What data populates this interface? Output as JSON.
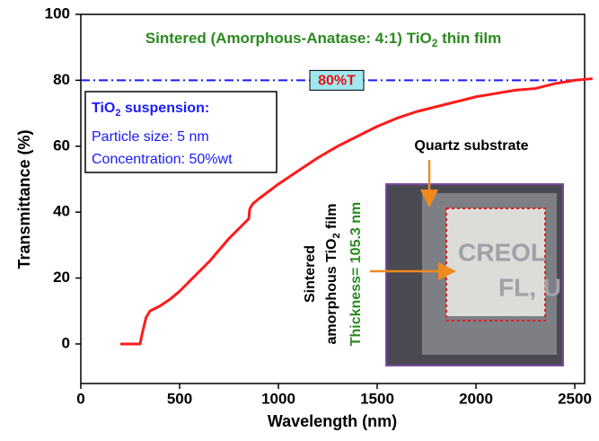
{
  "chart_data": {
    "type": "line",
    "title_parts": [
      "Sintered (Amorphous-Anatase: 4:1) TiO",
      "2",
      " thin film"
    ],
    "x_label": "Wavelength (nm)",
    "y_label": "Transmittance (%)",
    "series": [
      {
        "color": "#ff1a1a",
        "x": [
          200,
          250,
          300,
          310,
          330,
          350,
          400,
          450,
          500,
          550,
          600,
          650,
          700,
          750,
          800,
          850,
          855,
          870,
          900,
          1000,
          1100,
          1200,
          1300,
          1400,
          1500,
          1600,
          1700,
          1800,
          1900,
          2000,
          2100,
          2200,
          2300,
          2400,
          2500,
          2590
        ],
        "values": [
          0,
          0,
          0,
          3,
          8,
          10,
          11.5,
          13.5,
          16,
          19,
          22,
          25,
          28.5,
          32,
          35,
          38,
          41,
          42.5,
          44,
          48.5,
          52.5,
          56.5,
          60,
          63,
          66,
          68.5,
          70.5,
          72,
          73.5,
          75,
          76,
          77,
          77.5,
          79,
          80,
          80.5
        ]
      }
    ],
    "xlim": [
      0,
      2550
    ],
    "ylim": [
      -12,
      100
    ],
    "xticks": [
      0,
      500,
      1000,
      1500,
      2000,
      2500
    ],
    "yticks": [
      0,
      20,
      40,
      60,
      80,
      100
    ],
    "reference_line": {
      "value": 80,
      "label": "80%T",
      "color": "#1a1aff"
    },
    "info_box": {
      "title_parts": [
        "TiO",
        "2",
        " suspension:"
      ],
      "lines": [
        "Particle size: 5 nm",
        "Concentration: 50%wt"
      ]
    },
    "inset": {
      "caption": "Quartz substrate",
      "photo_text": [
        "CREOL",
        "FL, U"
      ],
      "side_label": [
        "Sintered",
        "amorphous TiO",
        "2",
        " film"
      ],
      "thickness": "Thickness= 105.3 nm"
    }
  }
}
